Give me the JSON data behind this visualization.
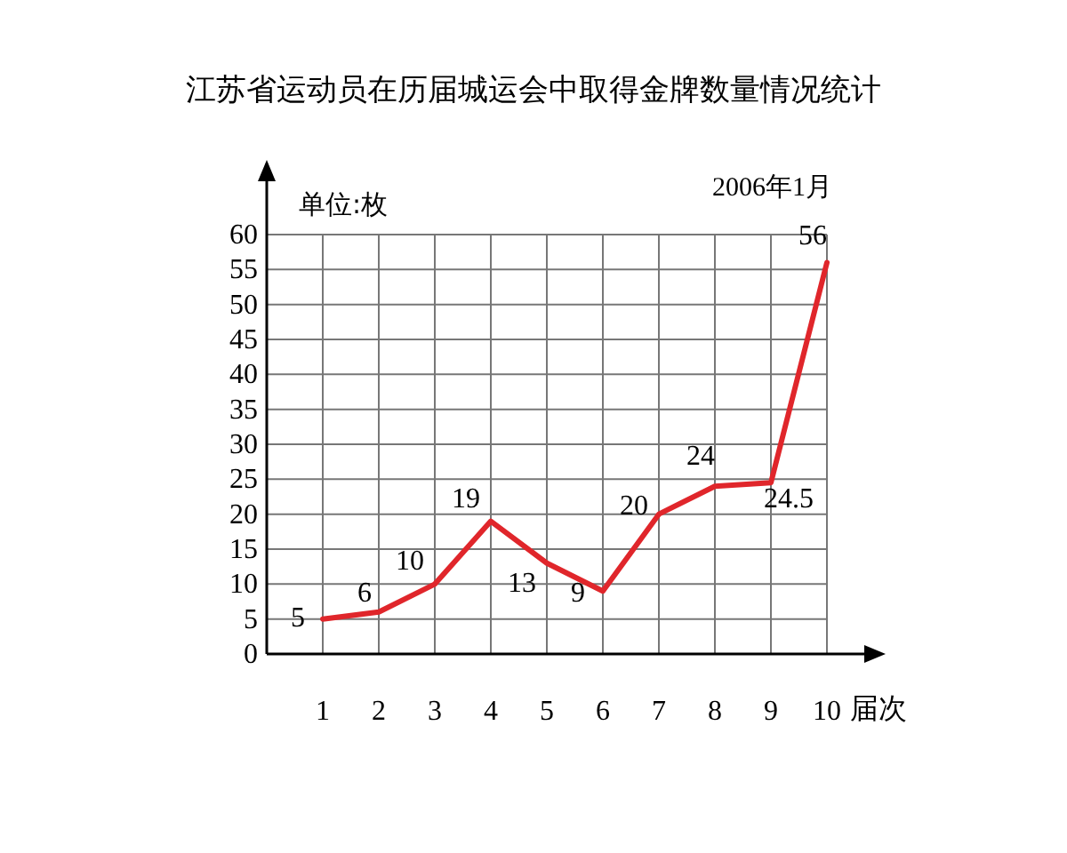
{
  "chart_data": {
    "type": "line",
    "title": "江苏省运动员在历届城运会中取得金牌数量情况统计",
    "xlabel": "届次",
    "ylabel": "单位:枚",
    "annotations": [
      "2006年1月"
    ],
    "x": [
      1,
      2,
      3,
      4,
      5,
      6,
      7,
      8,
      9,
      10
    ],
    "series": [
      {
        "color": "#e0262b",
        "values": [
          5,
          6,
          10,
          19,
          13,
          9,
          20,
          24,
          24.5,
          56
        ]
      }
    ],
    "xlim": [
      0,
      10
    ],
    "xticks": [
      1,
      2,
      3,
      4,
      5,
      6,
      7,
      8,
      9,
      10
    ],
    "ylim": [
      0,
      60
    ],
    "yticks": [
      0,
      5,
      10,
      15,
      20,
      25,
      30,
      35,
      40,
      45,
      50,
      55,
      60
    ],
    "grid": true,
    "data_labels": true,
    "marker": "none",
    "line_style": "solid"
  }
}
